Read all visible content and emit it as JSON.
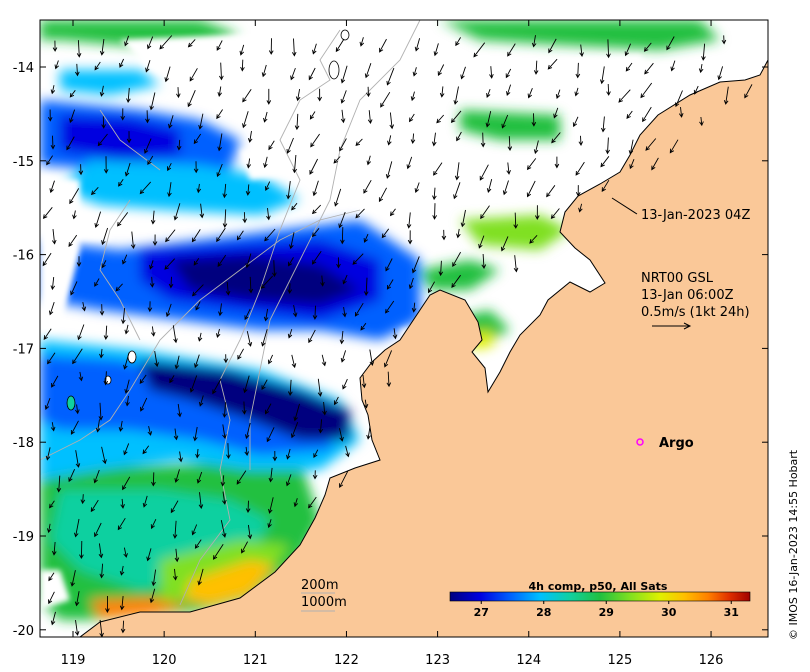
{
  "map": {
    "lon_range": [
      118.6,
      126.7
    ],
    "lat_range": [
      -20.1,
      -13.5
    ],
    "x_ticks": [
      "119",
      "120",
      "121",
      "122",
      "123",
      "124",
      "125",
      "126"
    ],
    "y_ticks": [
      "-14",
      "-15",
      "-16",
      "-17",
      "-18",
      "-19",
      "-20"
    ],
    "colors": {
      "land": "#fac898",
      "nodata": "#ffffff",
      "coast": "#000000",
      "isobath": "#a0a0a0"
    }
  },
  "annotations": {
    "timestamp": "13-Jan-2023 04Z",
    "current_model": "NRT00 GSL",
    "current_time": "13-Jan 06:00Z",
    "scale_text": "0.5m/s (1kt 24h)",
    "argo_label": "Argo",
    "isobath_200": "200m",
    "isobath_1000": "1000m",
    "credit": "© IMOS 16-Jan-2023 14:55 Hobart"
  },
  "colorbar": {
    "title": "4h comp, p50, All Sats",
    "ticks": [
      "27",
      "28",
      "29",
      "30",
      "31"
    ],
    "range": [
      26.5,
      31.3
    ],
    "stops": [
      "#00007f",
      "#0000e0",
      "#0060ff",
      "#00c0ff",
      "#10d0a0",
      "#20c040",
      "#80e020",
      "#e0f000",
      "#ffc000",
      "#ff8000",
      "#e03000",
      "#a00000"
    ]
  }
}
